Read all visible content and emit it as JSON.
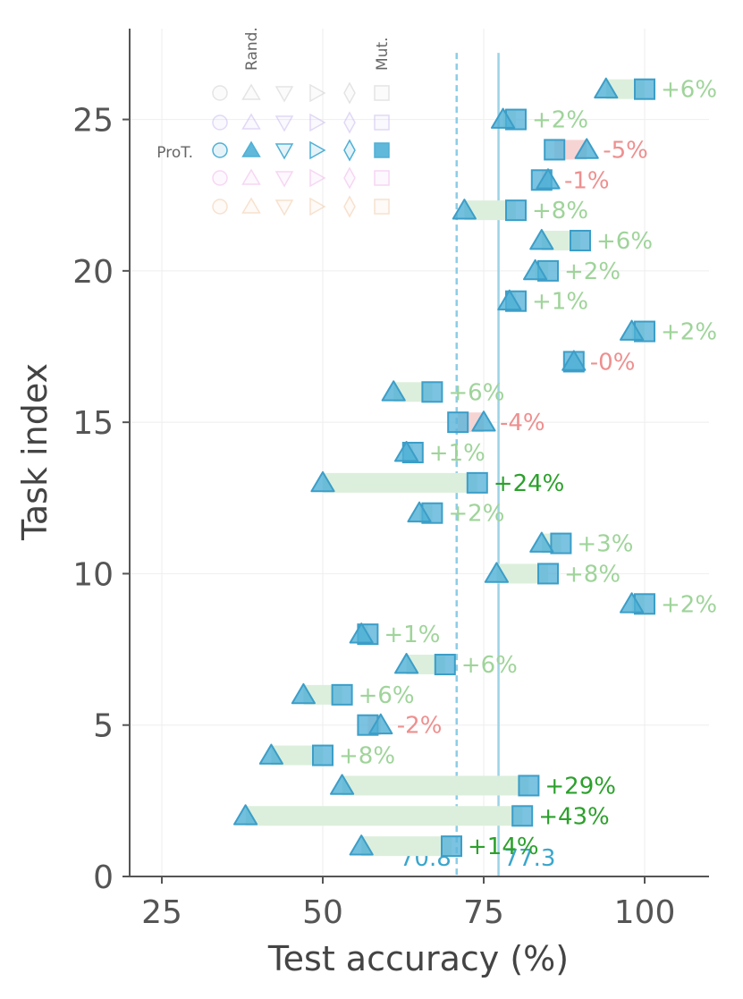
{
  "chart_data": {
    "type": "dumbbell",
    "xlabel": "Test accuracy (%)",
    "ylabel": "Task index",
    "xlim": [
      20,
      110
    ],
    "ylim": [
      0,
      28
    ],
    "xticks": [
      "25",
      "50",
      "75",
      "100"
    ],
    "yticks": [
      "0",
      "5",
      "10",
      "15",
      "20",
      "25"
    ],
    "grid": true,
    "marker_colors": {
      "rand": "#4fb0d6",
      "mut": "#5ab4d9",
      "positive_weak": "#9fd49a",
      "positive_strong": "#2ca02c",
      "negative": "#ee8f8f",
      "bar_positive": "#dcefdc",
      "bar_negative": "#f7d4d4"
    },
    "means": [
      {
        "label": "70.8",
        "value": 70.8,
        "style": "dashed"
      },
      {
        "label": "77.3",
        "value": 77.3,
        "style": "solid"
      }
    ],
    "legend": {
      "column_labels": [
        "Rand.",
        "Mut."
      ],
      "row_label": "ProT.",
      "placement": "top-left"
    },
    "series": [
      {
        "name": "Rand.",
        "marker": "triangle"
      },
      {
        "name": "Mut.",
        "marker": "square"
      }
    ],
    "tasks": [
      {
        "index": 1,
        "rand": 56,
        "mut": 70,
        "delta": "+14%"
      },
      {
        "index": 2,
        "rand": 38,
        "mut": 81,
        "delta": "+43%"
      },
      {
        "index": 3,
        "rand": 53,
        "mut": 82,
        "delta": "+29%"
      },
      {
        "index": 4,
        "rand": 42,
        "mut": 50,
        "delta": "+8%"
      },
      {
        "index": 5,
        "rand": 59,
        "mut": 57,
        "delta": "-2%"
      },
      {
        "index": 6,
        "rand": 47,
        "mut": 53,
        "delta": "+6%"
      },
      {
        "index": 7,
        "rand": 63,
        "mut": 69,
        "delta": "+6%"
      },
      {
        "index": 8,
        "rand": 56,
        "mut": 57,
        "delta": "+1%"
      },
      {
        "index": 9,
        "rand": 98,
        "mut": 100,
        "delta": "+2%"
      },
      {
        "index": 10,
        "rand": 77,
        "mut": 85,
        "delta": "+8%"
      },
      {
        "index": 11,
        "rand": 84,
        "mut": 87,
        "delta": "+3%"
      },
      {
        "index": 12,
        "rand": 65,
        "mut": 67,
        "delta": "+2%"
      },
      {
        "index": 13,
        "rand": 50,
        "mut": 74,
        "delta": "+24%"
      },
      {
        "index": 14,
        "rand": 63,
        "mut": 64,
        "delta": "+1%"
      },
      {
        "index": 15,
        "rand": 75,
        "mut": 71,
        "delta": "-4%"
      },
      {
        "index": 16,
        "rand": 61,
        "mut": 67,
        "delta": "+6%"
      },
      {
        "index": 17,
        "rand": 89,
        "mut": 89,
        "delta": "-0%"
      },
      {
        "index": 18,
        "rand": 98,
        "mut": 100,
        "delta": "+2%"
      },
      {
        "index": 19,
        "rand": 79,
        "mut": 80,
        "delta": "+1%"
      },
      {
        "index": 20,
        "rand": 83,
        "mut": 85,
        "delta": "+2%"
      },
      {
        "index": 21,
        "rand": 84,
        "mut": 90,
        "delta": "+6%"
      },
      {
        "index": 22,
        "rand": 72,
        "mut": 80,
        "delta": "+8%"
      },
      {
        "index": 23,
        "rand": 85,
        "mut": 84,
        "delta": "-1%"
      },
      {
        "index": 24,
        "rand": 91,
        "mut": 86,
        "delta": "-5%"
      },
      {
        "index": 25,
        "rand": 78,
        "mut": 80,
        "delta": "+2%"
      },
      {
        "index": 26,
        "rand": 94,
        "mut": 100,
        "delta": "+6%"
      }
    ]
  }
}
